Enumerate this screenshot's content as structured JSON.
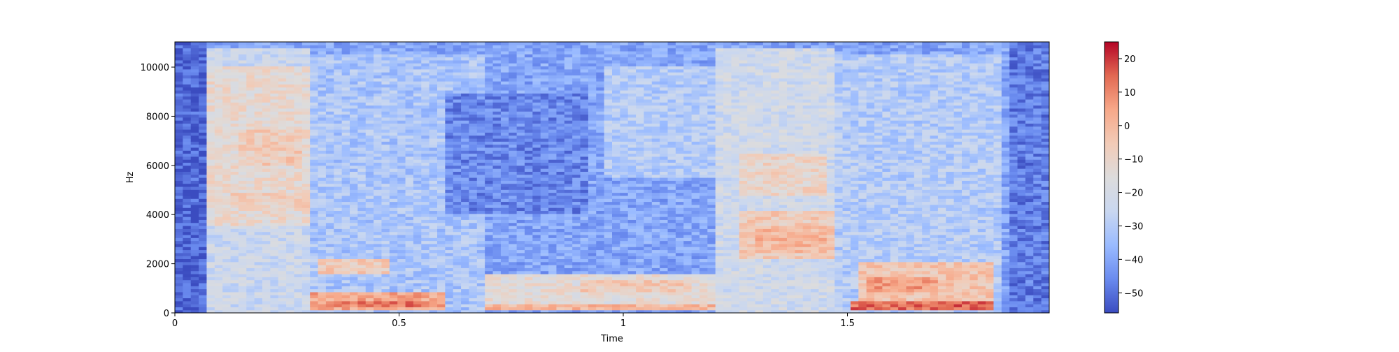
{
  "chart_data": {
    "type": "heatmap",
    "title": "",
    "xlabel": "Time",
    "ylabel": "Hz",
    "xlim": [
      0,
      1.95
    ],
    "ylim": [
      0,
      11025
    ],
    "x_ticks": [
      0,
      0.5,
      1,
      1.5
    ],
    "x_tick_labels": [
      "0",
      "0.5",
      "1",
      "1.5"
    ],
    "y_ticks": [
      0,
      2000,
      4000,
      6000,
      8000,
      10000
    ],
    "y_tick_labels": [
      "0",
      "2000",
      "4000",
      "6000",
      "8000",
      "10000"
    ],
    "colorbar": {
      "colormap": "coolwarm",
      "range": [
        -56,
        25
      ],
      "ticks": [
        20,
        10,
        0,
        -10,
        -20,
        -30,
        -40,
        -50
      ],
      "tick_labels": [
        "20",
        "10",
        "0",
        "−10",
        "−20",
        "−30",
        "−40",
        "−50"
      ],
      "colors": [
        "#3b4cc0",
        "#6a8bef",
        "#9abbff",
        "#c9d7f0",
        "#dddcdc",
        "#f2cbb7",
        "#f7a889",
        "#e26952",
        "#b40426"
      ]
    },
    "regions": [
      {
        "t": [
          0.0,
          0.07
        ],
        "f": [
          0,
          11025
        ],
        "db": -52
      },
      {
        "t": [
          0.07,
          0.3
        ],
        "f": [
          0,
          10800
        ],
        "db": -24
      },
      {
        "t": [
          0.07,
          0.3
        ],
        "f": [
          3500,
          10000
        ],
        "db": -12
      },
      {
        "t": [
          0.15,
          0.28
        ],
        "f": [
          6000,
          7500
        ],
        "db": -6
      },
      {
        "t": [
          0.12,
          0.3
        ],
        "f": [
          4300,
          4900
        ],
        "db": -8
      },
      {
        "t": [
          0.3,
          0.7
        ],
        "f": [
          0,
          10500
        ],
        "db": -32
      },
      {
        "t": [
          0.32,
          0.48
        ],
        "f": [
          1600,
          2200
        ],
        "db": -6
      },
      {
        "t": [
          0.3,
          0.6
        ],
        "f": [
          100,
          900
        ],
        "db": 4
      },
      {
        "t": [
          0.35,
          0.55
        ],
        "f": [
          200,
          500
        ],
        "db": 12
      },
      {
        "t": [
          0.6,
          0.92
        ],
        "f": [
          4000,
          9000
        ],
        "db": -46
      },
      {
        "t": [
          0.7,
          1.2
        ],
        "f": [
          200,
          1600
        ],
        "db": -14
      },
      {
        "t": [
          0.9,
          1.15
        ],
        "f": [
          900,
          1300
        ],
        "db": -6
      },
      {
        "t": [
          0.7,
          1.2
        ],
        "f": [
          100,
          400
        ],
        "db": 0
      },
      {
        "t": [
          0.95,
          1.2
        ],
        "f": [
          5500,
          10000
        ],
        "db": -30
      },
      {
        "t": [
          1.2,
          1.48
        ],
        "f": [
          0,
          10800
        ],
        "db": -22
      },
      {
        "t": [
          1.25,
          1.48
        ],
        "f": [
          2200,
          4200
        ],
        "db": -6
      },
      {
        "t": [
          1.3,
          1.45
        ],
        "f": [
          2500,
          3500
        ],
        "db": 0
      },
      {
        "t": [
          1.25,
          1.45
        ],
        "f": [
          4800,
          6500
        ],
        "db": -10
      },
      {
        "t": [
          1.48,
          1.84
        ],
        "f": [
          0,
          10500
        ],
        "db": -30
      },
      {
        "t": [
          1.52,
          1.82
        ],
        "f": [
          500,
          2100
        ],
        "db": -4
      },
      {
        "t": [
          1.55,
          1.7
        ],
        "f": [
          900,
          1500
        ],
        "db": 6
      },
      {
        "t": [
          1.5,
          1.82
        ],
        "f": [
          100,
          450
        ],
        "db": 14
      },
      {
        "t": [
          1.86,
          1.95
        ],
        "f": [
          0,
          11025
        ],
        "db": -48
      }
    ]
  }
}
